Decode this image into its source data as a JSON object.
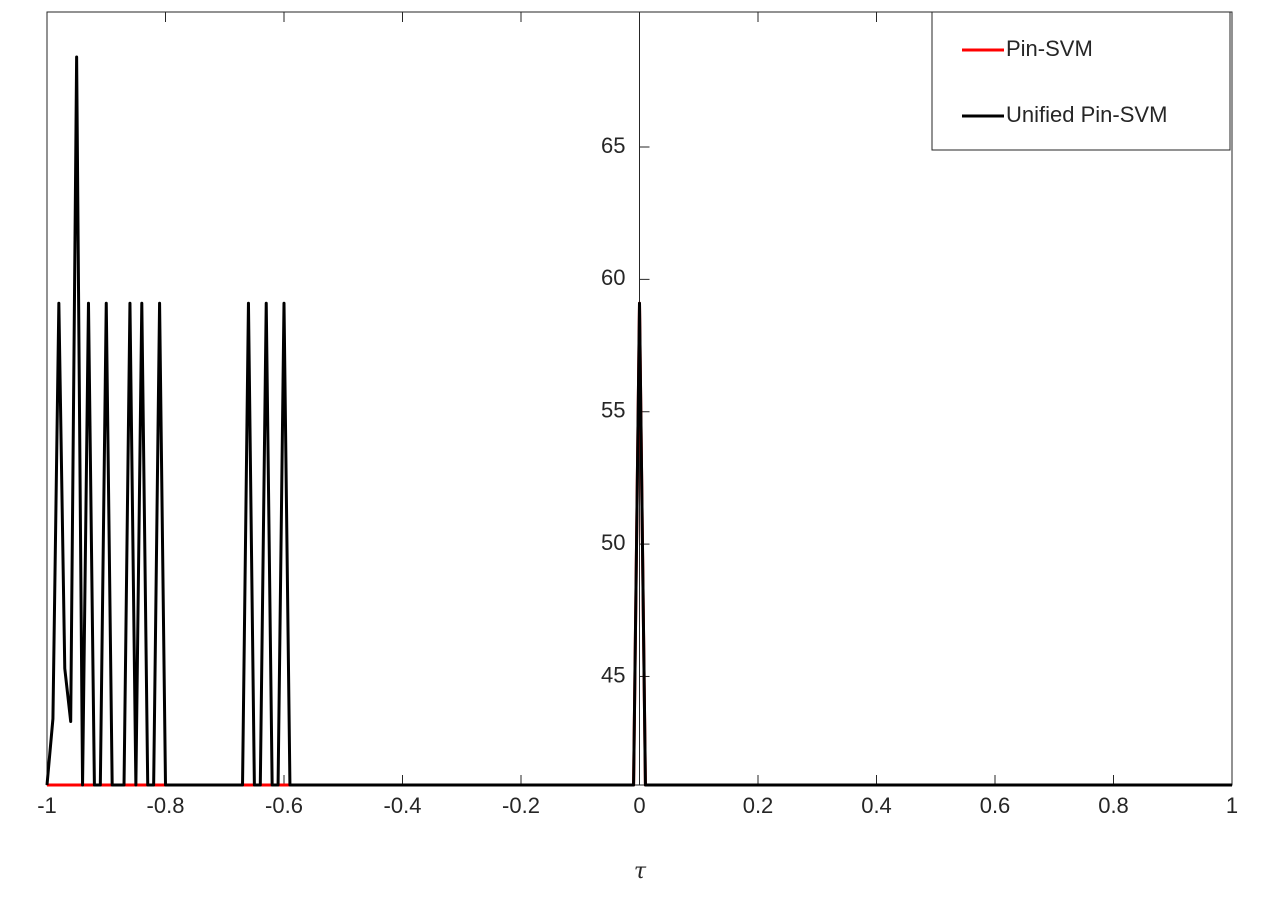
{
  "chart_data": {
    "type": "line",
    "x_label": "τ",
    "xlim": [
      -1,
      1
    ],
    "xticks": [
      -1,
      -0.8,
      -0.6,
      -0.4,
      -0.2,
      0,
      0.2,
      0.4,
      0.6,
      0.8,
      1
    ],
    "ylim": [
      40.9,
      70.1
    ],
    "yticks": [
      45,
      50,
      55,
      60,
      65
    ],
    "y_axis_location": "origin",
    "legend": "upper right",
    "series": [
      {
        "name": "Pin-SVM",
        "color": "#ff0000",
        "x": [
          -1,
          -0.01,
          0,
          0.01,
          1
        ],
        "values": [
          40.9,
          40.9,
          59.1,
          40.9,
          40.9
        ]
      },
      {
        "name": "Unified Pin-SVM",
        "color": "#000000",
        "x": [
          -1,
          -0.99,
          -0.98,
          -0.97,
          -0.96,
          -0.95,
          -0.94,
          -0.93,
          -0.92,
          -0.91,
          -0.9,
          -0.89,
          -0.88,
          -0.87,
          -0.86,
          -0.85,
          -0.84,
          -0.83,
          -0.82,
          -0.81,
          -0.8,
          -0.67,
          -0.66,
          -0.65,
          -0.64,
          -0.63,
          -0.62,
          -0.61,
          -0.6,
          -0.59,
          -0.01,
          0,
          0.01,
          1
        ],
        "values": [
          40.9,
          43.4,
          59.1,
          45.3,
          43.3,
          68.4,
          40.9,
          59.1,
          40.9,
          40.9,
          59.1,
          40.9,
          40.9,
          40.9,
          59.1,
          40.9,
          59.1,
          40.9,
          40.9,
          59.1,
          40.9,
          40.9,
          59.1,
          40.9,
          40.9,
          59.1,
          40.9,
          40.9,
          59.1,
          40.9,
          40.9,
          59.1,
          40.9,
          40.9
        ]
      }
    ]
  }
}
